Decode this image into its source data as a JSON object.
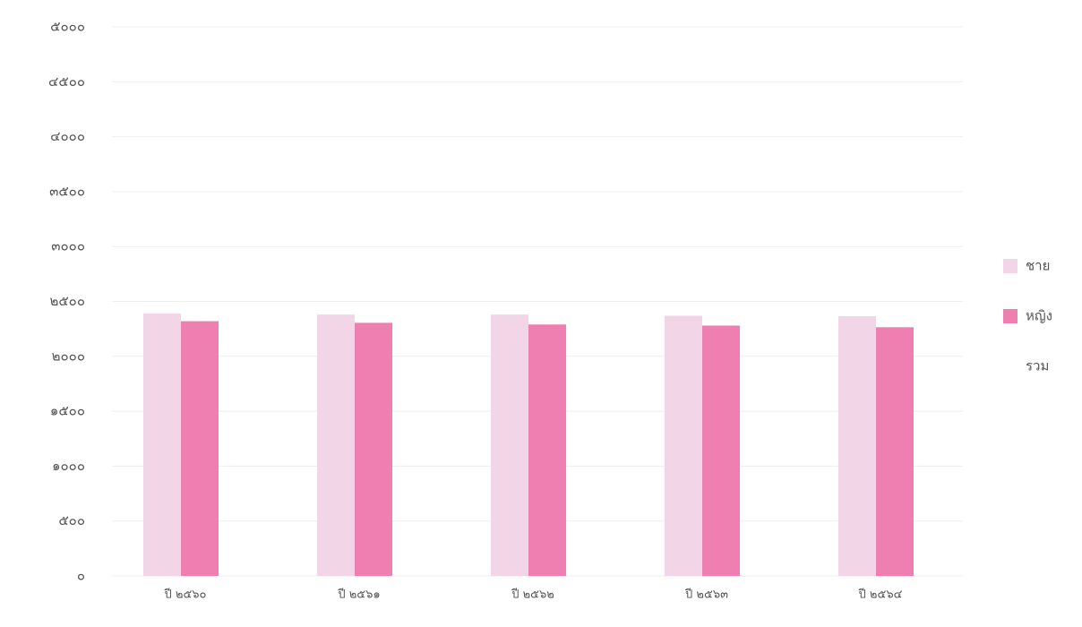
{
  "chart_data": {
    "type": "bar",
    "categories": [
      "ปี ๒๕๖๐",
      "ปี ๒๕๖๑",
      "ปี ๒๕๖๒",
      "ปี ๒๕๖๓",
      "ปี ๒๕๖๔"
    ],
    "series": [
      {
        "name": "ชาย",
        "color": "#f2d6e7",
        "values": [
          2390,
          2380,
          2380,
          2370,
          2365
        ]
      },
      {
        "name": "หญิง",
        "color": "#ee7fb0",
        "values": [
          2320,
          2305,
          2290,
          2280,
          2265
        ]
      },
      {
        "name": "รวม",
        "values": [
          null,
          null,
          null,
          null,
          null
        ]
      }
    ],
    "ylim": [
      0,
      5000
    ],
    "yticks": [
      {
        "value": 0,
        "label": "๐"
      },
      {
        "value": 500,
        "label": "๕๐๐"
      },
      {
        "value": 1000,
        "label": "๑๐๐๐"
      },
      {
        "value": 1500,
        "label": "๑๕๐๐"
      },
      {
        "value": 2000,
        "label": "๒๐๐๐"
      },
      {
        "value": 2500,
        "label": "๒๕๐๐"
      },
      {
        "value": 3000,
        "label": "๓๐๐๐"
      },
      {
        "value": 3500,
        "label": "๓๕๐๐"
      },
      {
        "value": 4000,
        "label": "๔๐๐๐"
      },
      {
        "value": 4500,
        "label": "๔๕๐๐"
      },
      {
        "value": 5000,
        "label": "๕๐๐๐"
      }
    ],
    "grid": true,
    "legend": "right"
  }
}
